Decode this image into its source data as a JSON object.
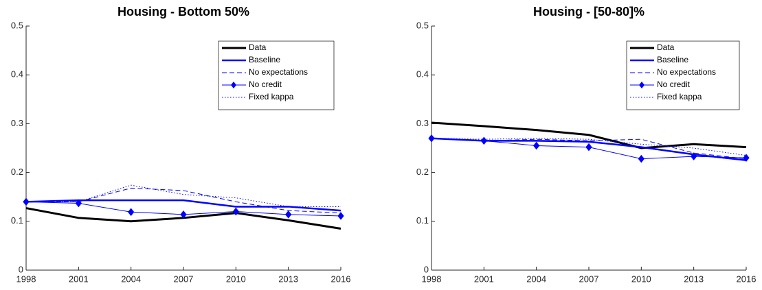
{
  "chart_data": [
    {
      "type": "line",
      "title": "Housing - Bottom 50%",
      "x": [
        1998,
        2001,
        2004,
        2007,
        2010,
        2013,
        2016
      ],
      "xlim": [
        1998,
        2016
      ],
      "xticks": [
        1998,
        2001,
        2004,
        2007,
        2010,
        2013,
        2016
      ],
      "ylim": [
        0,
        0.5
      ],
      "yticks": [
        0,
        0.1,
        0.2,
        0.3,
        0.4,
        0.5
      ],
      "legend": "top-right",
      "series": [
        {
          "name": "Data",
          "color": "#000000",
          "line_style": "solid",
          "line_width": 3,
          "values": [
            0.127,
            0.107,
            0.1,
            0.107,
            0.117,
            0.102,
            0.085
          ]
        },
        {
          "name": "Baseline",
          "color": "#0000ff",
          "line_style": "solid",
          "line_width": 2.5,
          "values": [
            0.14,
            0.143,
            0.143,
            0.143,
            0.13,
            0.13,
            0.122
          ]
        },
        {
          "name": "No expectations",
          "color": "#0000ff",
          "line_style": "dashed",
          "line_width": 1,
          "values": [
            0.14,
            0.14,
            0.168,
            0.163,
            0.14,
            0.122,
            0.117
          ]
        },
        {
          "name": "No credit",
          "color": "#0000ff",
          "line_style": "solid",
          "line_width": 1,
          "marker": "diamond",
          "values": [
            0.14,
            0.137,
            0.119,
            0.114,
            0.12,
            0.114,
            0.111
          ]
        },
        {
          "name": "Fixed kappa",
          "color": "#0000ff",
          "line_style": "dotted",
          "line_width": 1,
          "values": [
            0.14,
            0.14,
            0.174,
            0.155,
            0.148,
            0.13,
            0.13
          ]
        }
      ]
    },
    {
      "type": "line",
      "title": "Housing - [50-80]%",
      "x": [
        1998,
        2001,
        2004,
        2007,
        2010,
        2013,
        2016
      ],
      "xlim": [
        1998,
        2016
      ],
      "xticks": [
        1998,
        2001,
        2004,
        2007,
        2010,
        2013,
        2016
      ],
      "ylim": [
        0,
        0.5
      ],
      "yticks": [
        0,
        0.1,
        0.2,
        0.3,
        0.4,
        0.5
      ],
      "legend": "top-right",
      "series": [
        {
          "name": "Data",
          "color": "#000000",
          "line_style": "solid",
          "line_width": 3,
          "values": [
            0.302,
            0.295,
            0.287,
            0.277,
            0.25,
            0.258,
            0.252
          ]
        },
        {
          "name": "Baseline",
          "color": "#0000ff",
          "line_style": "solid",
          "line_width": 2.5,
          "values": [
            0.27,
            0.265,
            0.265,
            0.263,
            0.252,
            0.237,
            0.225
          ]
        },
        {
          "name": "No expectations",
          "color": "#0000ff",
          "line_style": "dashed",
          "line_width": 1,
          "values": [
            0.27,
            0.265,
            0.268,
            0.265,
            0.268,
            0.24,
            0.228
          ]
        },
        {
          "name": "No credit",
          "color": "#0000ff",
          "line_style": "solid",
          "line_width": 1,
          "marker": "diamond",
          "values": [
            0.27,
            0.265,
            0.255,
            0.252,
            0.228,
            0.233,
            0.23
          ]
        },
        {
          "name": "Fixed kappa",
          "color": "#0000ff",
          "line_style": "dotted",
          "line_width": 1,
          "values": [
            0.27,
            0.268,
            0.27,
            0.268,
            0.258,
            0.25,
            0.235
          ]
        }
      ]
    }
  ]
}
